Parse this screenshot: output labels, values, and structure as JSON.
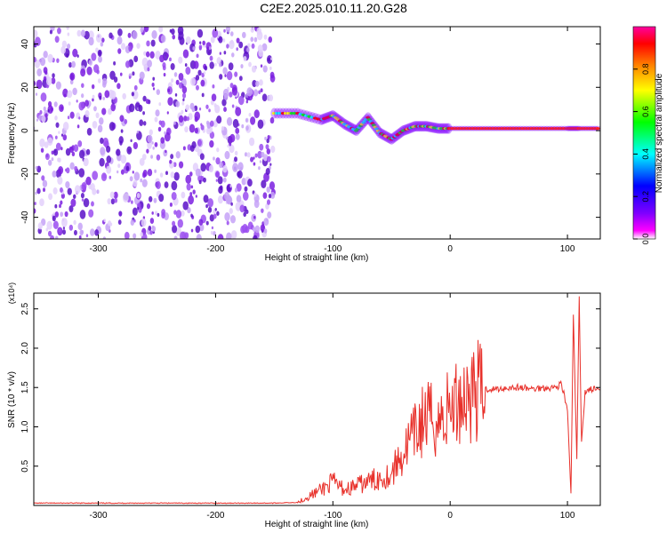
{
  "title": "C2E2.2025.010.11.20.G28",
  "chart_data": [
    {
      "type": "heatmap",
      "xlabel": "Height of straight line (km)",
      "ylabel": "Frequency (Hz)",
      "xlim": [
        -355,
        128
      ],
      "ylim": [
        -50,
        48
      ],
      "xticks": [
        -300,
        -200,
        -100,
        0,
        100
      ],
      "yticks": [
        -40,
        -20,
        0,
        20,
        40
      ],
      "colorbar": {
        "label": "Normalized spectral amplitude",
        "range": [
          0,
          1
        ],
        "ticks": [
          "0.0",
          "0.2",
          "0.4",
          "0.6",
          "0.8"
        ],
        "colors": [
          "#ffffff",
          "#ff00ff",
          "#8000ff",
          "#0000ff",
          "#00ffff",
          "#00ff00",
          "#ffff00",
          "#ff8000",
          "#ff0000",
          "#ff00a0"
        ]
      },
      "features": {
        "noise_region_x": [
          -355,
          -150
        ],
        "trace": [
          [
            -150,
            8
          ],
          [
            -130,
            8
          ],
          [
            -110,
            5
          ],
          [
            -100,
            7
          ],
          [
            -90,
            3
          ],
          [
            -80,
            0
          ],
          [
            -70,
            6
          ],
          [
            -60,
            -1
          ],
          [
            -50,
            -4
          ],
          [
            -40,
            0
          ],
          [
            -30,
            2
          ],
          [
            -20,
            2
          ],
          [
            -10,
            1
          ],
          [
            0,
            1
          ],
          [
            20,
            1
          ],
          [
            40,
            1
          ],
          [
            60,
            1
          ],
          [
            80,
            1
          ],
          [
            100,
            1
          ],
          [
            110,
            1
          ],
          [
            128,
            1
          ]
        ]
      }
    },
    {
      "type": "line",
      "xlabel": "Height of straight line (km)",
      "ylabel": "SNR (10 * v/v)",
      "scale_label": "(x10⁴)",
      "xlim": [
        -355,
        128
      ],
      "ylim": [
        0,
        2.7
      ],
      "xticks": [
        -300,
        -200,
        -100,
        0,
        100
      ],
      "yticks": [
        "0.5",
        "1.0",
        "1.5",
        "2.0",
        "2.5"
      ],
      "series": [
        {
          "color": "#e8302a",
          "x": [
            -355,
            -300,
            -250,
            -200,
            -150,
            -130,
            -120,
            -110,
            -100,
            -90,
            -80,
            -70,
            -60,
            -50,
            -45,
            -40,
            -35,
            -30,
            -25,
            -20,
            -15,
            -10,
            -5,
            0,
            5,
            10,
            20,
            30,
            40,
            50,
            60,
            70,
            80,
            90,
            95,
            100,
            103,
            105,
            108,
            110,
            112,
            115,
            120,
            128
          ],
          "y": [
            0.03,
            0.03,
            0.03,
            0.03,
            0.03,
            0.04,
            0.12,
            0.2,
            0.3,
            0.2,
            0.25,
            0.3,
            0.35,
            0.4,
            0.55,
            0.65,
            0.8,
            0.9,
            1.05,
            1.1,
            1.1,
            1.05,
            1.15,
            1.25,
            1.3,
            1.38,
            1.45,
            1.48,
            1.48,
            1.5,
            1.5,
            1.48,
            1.5,
            1.5,
            1.55,
            1.2,
            0.15,
            2.4,
            0.6,
            2.6,
            0.8,
            1.45,
            1.48,
            1.47
          ]
        }
      ]
    }
  ]
}
